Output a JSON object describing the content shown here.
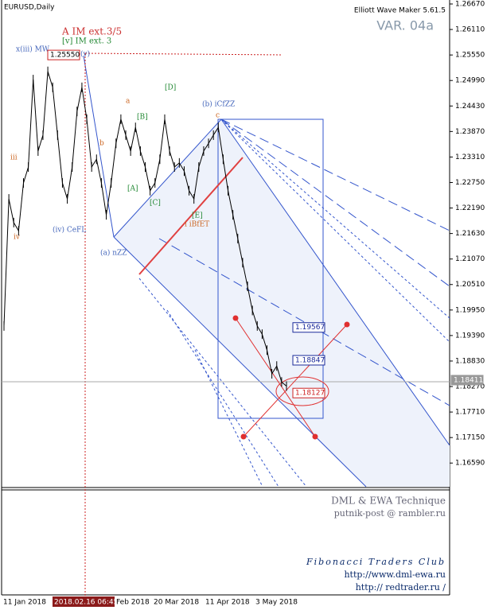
{
  "chart_data": {
    "type": "line",
    "title": "EURUSD,Daily",
    "indicator": "Elliott Wave Maker 5.61.5",
    "variant": "VAR. 04a",
    "color": "#000000",
    "values": [
      1.196,
      1.2239,
      1.2187,
      1.2169,
      1.2274,
      1.2309,
      1.2501,
      1.2344,
      1.2379,
      1.2519,
      1.2484,
      1.2379,
      1.2274,
      1.2239,
      1.2309,
      1.2431,
      1.2484,
      1.2414,
      1.2309,
      1.2326,
      1.2274,
      1.2204,
      1.2274,
      1.2361,
      1.2414,
      1.2379,
      1.2344,
      1.2396,
      1.2344,
      1.2309,
      1.2257,
      1.2274,
      1.2326,
      1.2414,
      1.2344,
      1.2309,
      1.2318,
      1.23,
      1.2257,
      1.2239,
      1.2309,
      1.2344,
      1.2361,
      1.2379,
      1.2396,
      1.2326,
      1.2257,
      1.2204,
      1.2152,
      1.2099,
      1.2047,
      1.1994,
      1.196,
      1.1942,
      1.1907,
      1.1855,
      1.1872,
      1.1837,
      1.1828
    ],
    "ylim": [
      1.1607,
      1.2667
    ],
    "yticks": [
      {
        "value": 1.2667,
        "label": "1.26670"
      },
      {
        "value": 1.2611,
        "label": "1.26110"
      },
      {
        "value": 1.2555,
        "label": "1.25550"
      },
      {
        "value": 1.2499,
        "label": "1.24990"
      },
      {
        "value": 1.2443,
        "label": "1.24430"
      },
      {
        "value": 1.2387,
        "label": "1.23870"
      },
      {
        "value": 1.2331,
        "label": "1.23310"
      },
      {
        "value": 1.2275,
        "label": "1.22750"
      },
      {
        "value": 1.2219,
        "label": "1.22190"
      },
      {
        "value": 1.2163,
        "label": "1.21630"
      },
      {
        "value": 1.2107,
        "label": "1.21070"
      },
      {
        "value": 1.2051,
        "label": "1.20510"
      },
      {
        "value": 1.1995,
        "label": "1.19950"
      },
      {
        "value": 1.1939,
        "label": "1.19390"
      },
      {
        "value": 1.1883,
        "label": "1.18830"
      },
      {
        "value": 1.1827,
        "label": "1.18270"
      },
      {
        "value": 1.1771,
        "label": "1.17710"
      },
      {
        "value": 1.1715,
        "label": "1.17150"
      },
      {
        "value": 1.1659,
        "label": "1.16590"
      }
    ],
    "price_labels": [
      {
        "value": 1.2555,
        "label": "1.25550"
      },
      {
        "value": 1.19567,
        "label": "1.19567"
      },
      {
        "value": 1.18847,
        "label": "1.18847"
      },
      {
        "value": 1.18127,
        "label": "1.18127"
      },
      {
        "value": 1.18411,
        "label": "1.18411"
      }
    ],
    "x_labels": [
      "11 Jan 2018",
      "2018.02.16 06:45",
      "Feb 2018",
      "20 Mar 2018",
      "11 Apr 2018",
      "3 May 2018"
    ],
    "wave_labels": [
      "A IM ext.3/5",
      "[v] IM ext. 3",
      "x(iii) MW",
      "(v)",
      "(b) iCfZZ",
      "(a) nZZ",
      "(iv) CeFL",
      "i iBfET",
      "[D]",
      "[B]",
      "[A]",
      "[C]",
      "[E]",
      "iii",
      "iv",
      "a",
      "b",
      "c"
    ],
    "footer": [
      "DML & EWA Technique",
      "putnik-post @ rambler.ru",
      "Fibonacci Traders Club",
      "http://www.dml-ewa.ru",
      "http:// redtrader.ru /"
    ]
  }
}
